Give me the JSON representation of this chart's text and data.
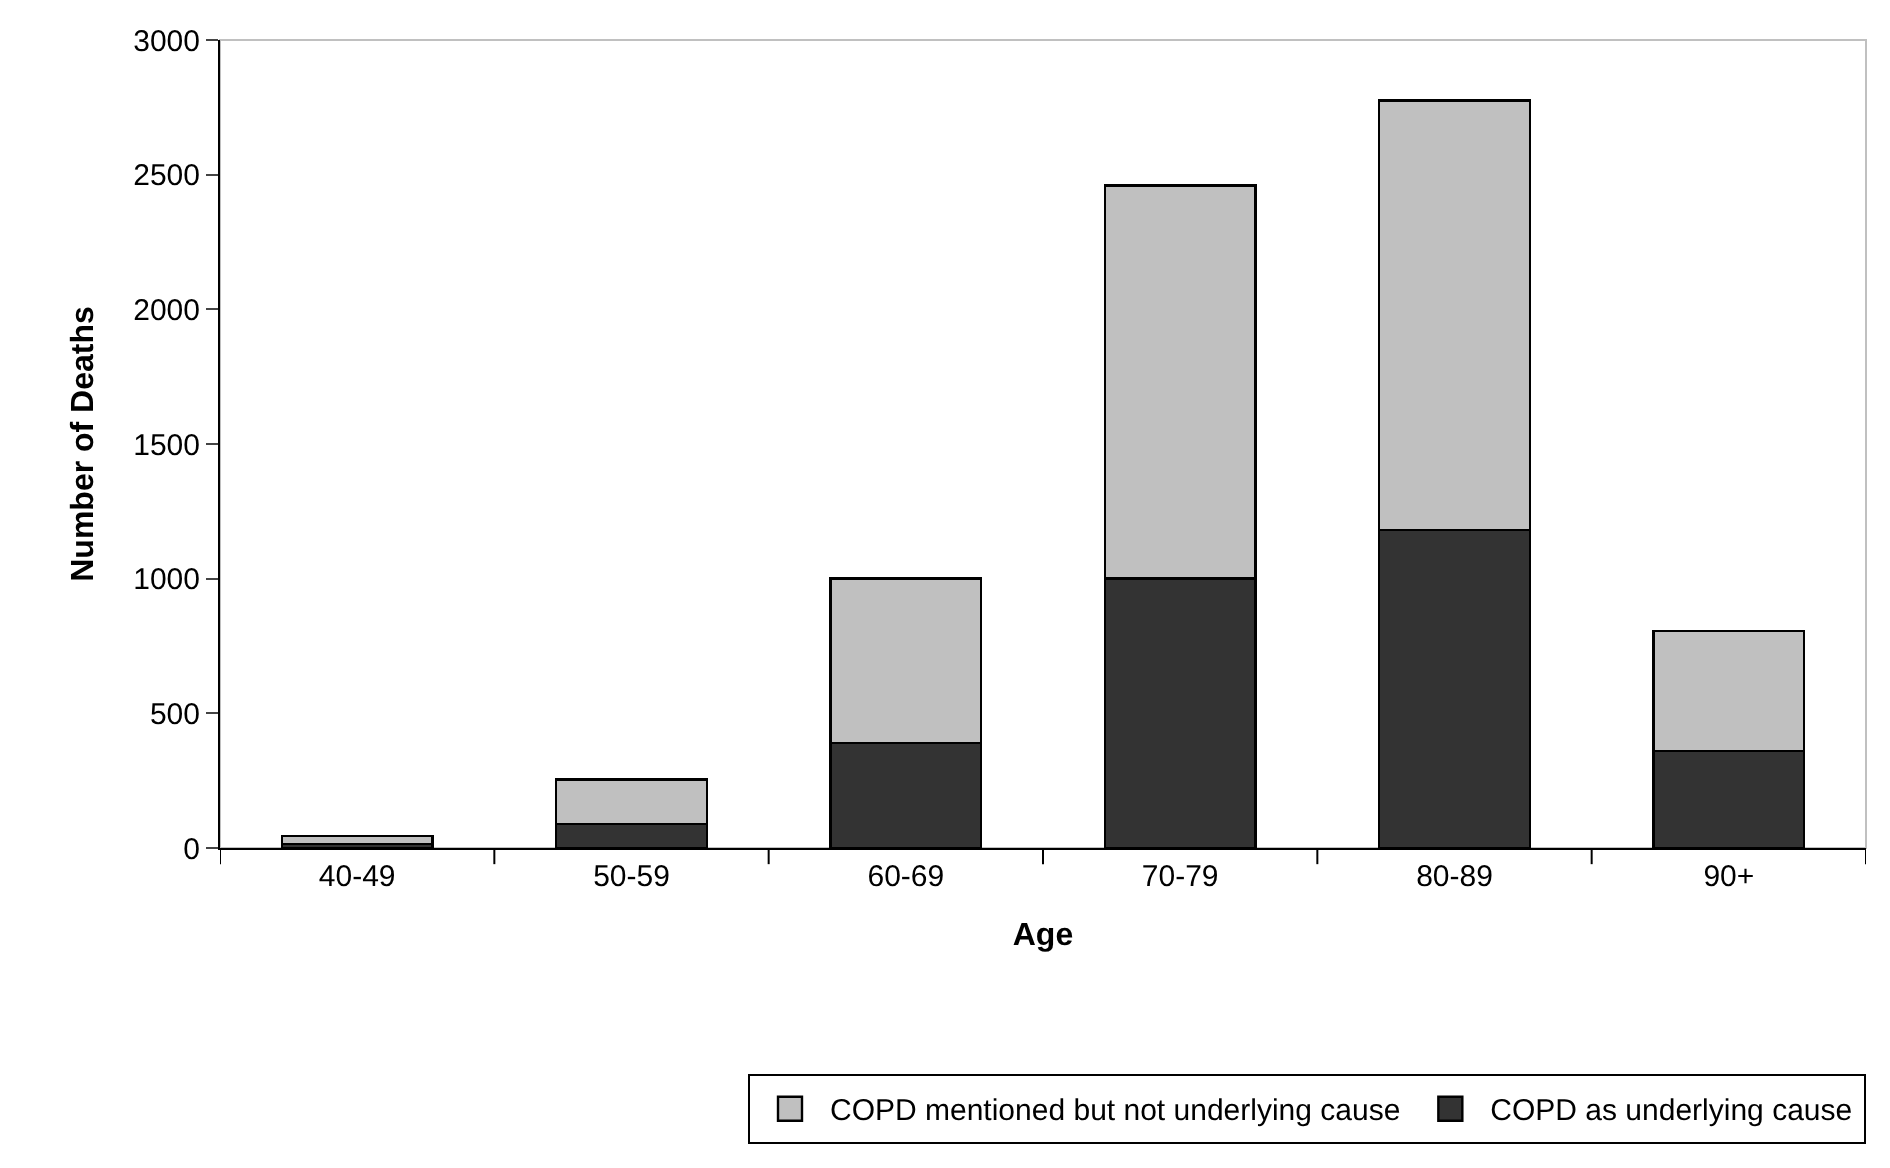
{
  "chart_data": {
    "type": "bar",
    "stacked": true,
    "xlabel": "Age",
    "ylabel": "Number of Deaths",
    "categories": [
      "40-49",
      "50-59",
      "60-69",
      "70-79",
      "80-89",
      "90+"
    ],
    "series": [
      {
        "name": "COPD as underlying cause",
        "color": "#333333",
        "values": [
          15,
          90,
          390,
          1000,
          1180,
          360
        ]
      },
      {
        "name": "COPD mentioned but not underlying cause",
        "color": "#c0c0c0",
        "values": [
          30,
          165,
          610,
          1460,
          1595,
          445
        ]
      }
    ],
    "ylim": [
      0,
      3000
    ],
    "yticks": [
      0,
      500,
      1000,
      1500,
      2000,
      2500,
      3000
    ],
    "grid": false,
    "legend": "bottom"
  }
}
